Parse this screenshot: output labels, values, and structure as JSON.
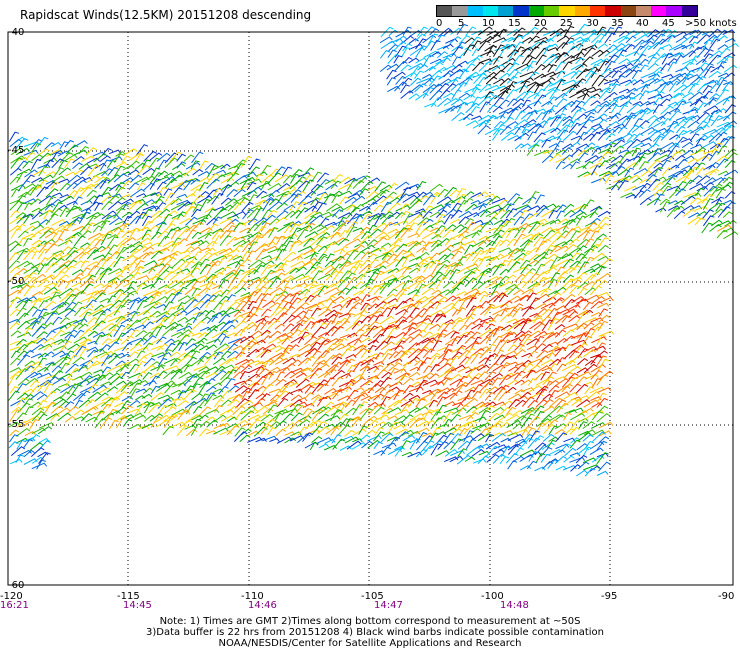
{
  "title": "Rapidscat Winds(12.5KM) 20151208 descending",
  "scale": {
    "colors": [
      "#555555",
      "#999999",
      "#00bfff",
      "#00e5ee",
      "#00a0d0",
      "#0033cc",
      "#00aa00",
      "#66cc00",
      "#ffd700",
      "#ffaa00",
      "#ff3300",
      "#cc0000",
      "#8b4513",
      "#c48a6a",
      "#ff00ff",
      "#aa00ff",
      "#330099"
    ],
    "ticks": [
      "0",
      "5",
      "10",
      "15",
      "20",
      "25",
      "30",
      "35",
      "40",
      "45",
      ">50 knots"
    ]
  },
  "axes": {
    "lon_labels": [
      "-120",
      "-115",
      "-110",
      "-105",
      "-100",
      "-95",
      "-90"
    ],
    "lat_labels": [
      "-40",
      "-45",
      "-50",
      "-55",
      "-60"
    ]
  },
  "times": [
    "16:21",
    "14:45",
    "14:46",
    "14:47",
    "14:48"
  ],
  "notes": [
    "Note: 1) Times are GMT 2)Times along bottom correspond to measurement at ~50S",
    "3)Data buffer is 22 hrs from 20151208 4) Black wind barbs indicate possible contamination",
    "NOAA/NESDIS/Center for Satellite Applications and Research"
  ]
}
